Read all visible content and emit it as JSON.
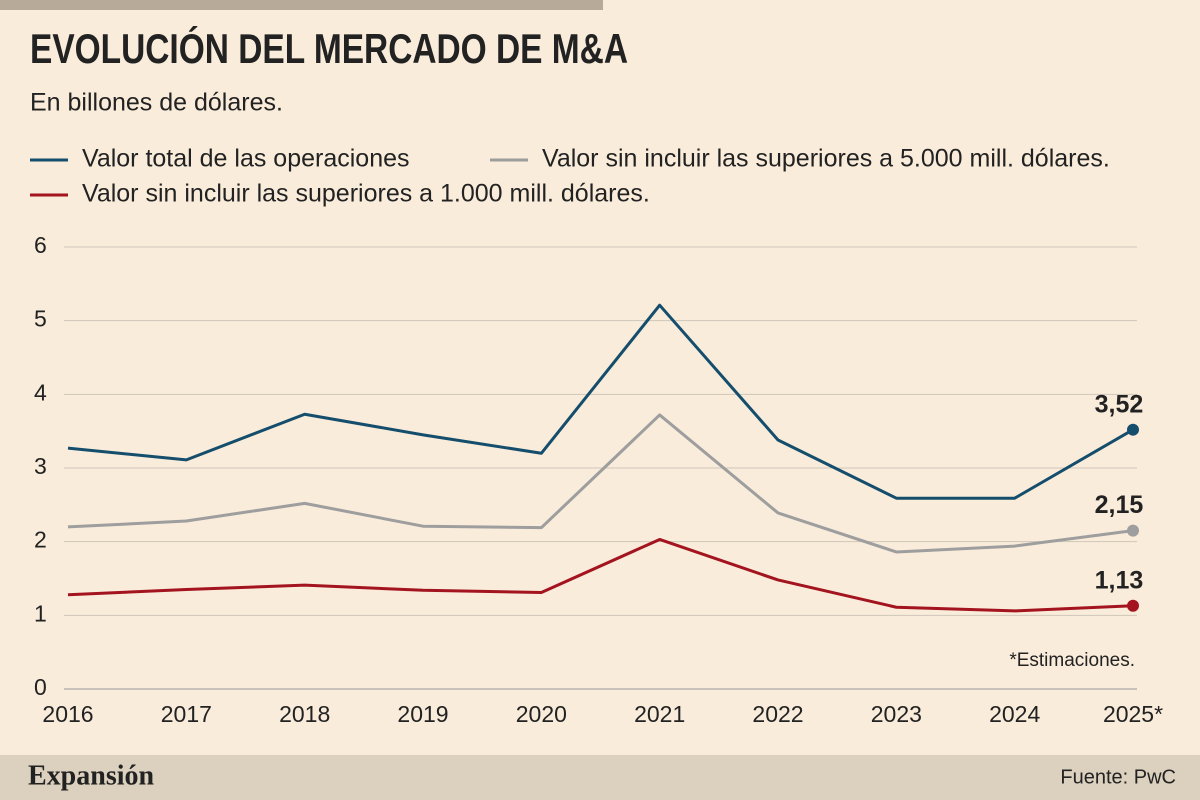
{
  "chart_data": {
    "type": "line",
    "title": "EVOLUCIÓN DEL MERCADO DE M&A",
    "subtitle": "En billones de dólares.",
    "categories": [
      "2016",
      "2017",
      "2018",
      "2019",
      "2020",
      "2021",
      "2022",
      "2023",
      "2024",
      "2025*"
    ],
    "series": [
      {
        "name": "Valor total de las operaciones",
        "color": "#154e6d",
        "values": [
          3.27,
          3.11,
          3.73,
          3.45,
          3.2,
          5.21,
          3.38,
          2.59,
          2.59,
          3.52
        ],
        "value_labels": [
          null,
          null,
          null,
          null,
          null,
          null,
          null,
          null,
          null,
          "3,52"
        ]
      },
      {
        "name": "Valor sin incluir las superiores a 5.000 mill. dólares.",
        "color": "#9e9e9e",
        "values": [
          2.2,
          2.28,
          2.52,
          2.21,
          2.19,
          3.72,
          2.39,
          1.86,
          1.94,
          2.15
        ],
        "value_labels": [
          null,
          null,
          null,
          null,
          null,
          null,
          null,
          null,
          null,
          "2,15"
        ]
      },
      {
        "name": "Valor sin incluir las superiores a 1.000 mill. dólares.",
        "color": "#a3141f",
        "values": [
          1.28,
          1.35,
          1.41,
          1.34,
          1.31,
          2.03,
          1.48,
          1.11,
          1.06,
          1.13
        ],
        "value_labels": [
          null,
          null,
          null,
          null,
          null,
          null,
          null,
          null,
          null,
          "1,13"
        ]
      }
    ],
    "ylim": [
      0,
      6
    ],
    "yticks": [
      0,
      1,
      2,
      3,
      4,
      5,
      6
    ],
    "grid": true,
    "annotation": "*Estimaciones.",
    "source": "Fuente: PwC",
    "brand": "Expansión"
  }
}
